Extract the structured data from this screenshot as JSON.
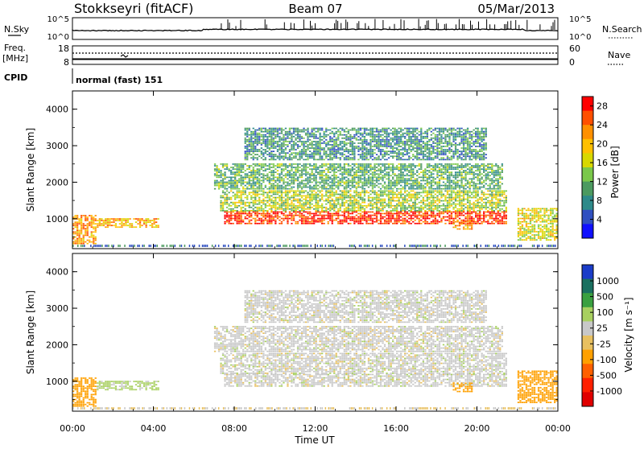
{
  "header": {
    "station": "Stokkseyri (fitACF)",
    "beam": "Beam 07",
    "date": "05/Mar/2013"
  },
  "noise_panel": {
    "left_label": "N.Sky",
    "right_label": "N.Search",
    "left_ticks": [
      "10^5",
      "10^0"
    ],
    "right_ticks": [
      "10^5",
      "10^0"
    ]
  },
  "freq_panel": {
    "left_label_1": "Freq.",
    "left_label_2": "[MHz]",
    "right_label": "Nave",
    "left_ticks": [
      "18",
      "8"
    ],
    "right_ticks": [
      "60",
      "0"
    ]
  },
  "cpid": {
    "label": "CPID",
    "mode": "normal (fast) 151"
  },
  "x_axis": {
    "title": "Time UT",
    "ticks": [
      "00:00",
      "04:00",
      "08:00",
      "12:00",
      "16:00",
      "20:00",
      "00:00"
    ]
  },
  "power_panel": {
    "ylabel": "Slant Range [km]",
    "yticks": [
      "1000",
      "2000",
      "3000",
      "4000"
    ],
    "colorbar_label": "Power [dB]",
    "colorbar_ticks": [
      "4",
      "8",
      "12",
      "16",
      "20",
      "24",
      "28"
    ],
    "colors": [
      "#1010ff",
      "#3050c0",
      "#2e8a8a",
      "#4c9a60",
      "#7ac84a",
      "#d8d800",
      "#ffc000",
      "#ff9000",
      "#ff5000",
      "#ff0000"
    ]
  },
  "velocity_panel": {
    "ylabel": "Slant Range [km]",
    "yticks": [
      "1000",
      "2000",
      "3000",
      "4000"
    ],
    "colorbar_label": "Velocity [m s⁻¹]",
    "colorbar_ticks": [
      "1000",
      "500",
      "100",
      "25",
      "-25",
      "-100",
      "-500",
      "-1000"
    ],
    "colors": [
      "#1a3cc8",
      "#1a7060",
      "#3aa040",
      "#a8d060",
      "#c8c8c8",
      "#e8c060",
      "#ffa000",
      "#ff6000",
      "#ff2000",
      "#e00000"
    ]
  },
  "chart_data": {
    "type": "heatmap",
    "time_range_ut": [
      "00:00",
      "24:00"
    ],
    "range_axis_km": [
      180,
      4500
    ],
    "power_db_scale": [
      0,
      30
    ],
    "velocity_scale_ms": [
      -1000,
      1000
    ],
    "echo_regions": [
      {
        "start_ut": 0.0,
        "end_ut": 1.2,
        "range_km": [
          300,
          1100
        ],
        "power_db": 22,
        "velocity_ms": -300
      },
      {
        "start_ut": 1.2,
        "end_ut": 4.3,
        "range_km": [
          750,
          1000
        ],
        "power_db": 20,
        "velocity_ms": 40
      },
      {
        "start_ut": 7.5,
        "end_ut": 21.5,
        "range_km": [
          850,
          1200
        ],
        "power_db": 27,
        "velocity_ms": 0
      },
      {
        "start_ut": 7.3,
        "end_ut": 21.5,
        "range_km": [
          1200,
          1750
        ],
        "power_db": 15,
        "velocity_ms": 0
      },
      {
        "start_ut": 7.0,
        "end_ut": 21.3,
        "range_km": [
          1800,
          2500
        ],
        "power_db": 11,
        "velocity_ms": 0
      },
      {
        "start_ut": 8.5,
        "end_ut": 20.5,
        "range_km": [
          2600,
          3500
        ],
        "power_db": 9,
        "velocity_ms": 0
      },
      {
        "start_ut": 18.8,
        "end_ut": 19.8,
        "range_km": [
          700,
          950
        ],
        "power_db": 22,
        "velocity_ms": -400
      },
      {
        "start_ut": 22.0,
        "end_ut": 24.0,
        "range_km": [
          400,
          1300
        ],
        "power_db": 17,
        "velocity_ms": -350
      }
    ]
  }
}
